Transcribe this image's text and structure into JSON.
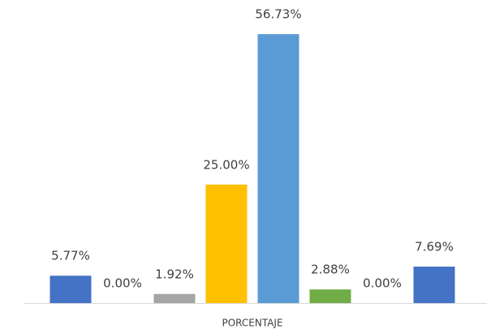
{
  "chart_data": {
    "type": "bar",
    "categories": [
      "PORCENTAJE"
    ],
    "series": [
      {
        "color": "#4472c4",
        "values": [
          5.77
        ],
        "value_labels": [
          "5.77%"
        ]
      },
      {
        "color": "#ed7d31",
        "values": [
          0
        ],
        "value_labels": [
          "0.00%"
        ]
      },
      {
        "color": "#a5a5a5",
        "values": [
          1.92
        ],
        "value_labels": [
          "1.92%"
        ]
      },
      {
        "color": "#ffc000",
        "values": [
          25
        ],
        "value_labels": [
          "25.00%"
        ]
      },
      {
        "color": "#5b9bd5",
        "values": [
          56.73
        ],
        "value_labels": [
          "56.73%"
        ]
      },
      {
        "color": "#70ad47",
        "values": [
          2.88
        ],
        "value_labels": [
          "2.88%"
        ]
      },
      {
        "color": "#264478",
        "values": [
          0
        ],
        "value_labels": [
          "0.00%"
        ]
      },
      {
        "color": "#4472c4",
        "values": [
          7.69
        ],
        "value_labels": [
          "7.69%"
        ]
      }
    ],
    "ylim": [
      0,
      60
    ]
  }
}
